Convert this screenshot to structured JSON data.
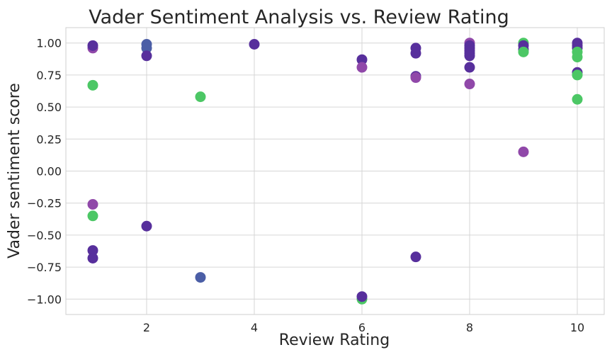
{
  "chart_data": {
    "type": "scatter",
    "title": "Vader Sentiment Analysis vs. Review Rating",
    "xlabel": "Review Rating",
    "ylabel": "Vader sentiment score",
    "xlim": [
      0.5,
      10.5
    ],
    "ylim": [
      -1.12,
      1.12
    ],
    "xticks": [
      2,
      4,
      6,
      8,
      10
    ],
    "xtick_labels": [
      "2",
      "4",
      "6",
      "8",
      "10"
    ],
    "yticks": [
      1.0,
      0.75,
      0.5,
      0.25,
      0.0,
      -0.25,
      -0.5,
      -0.75,
      -1.0
    ],
    "ytick_labels": [
      "1.00",
      "0.75",
      "0.50",
      "0.25",
      "0.00",
      "−0.25",
      "−0.50",
      "−0.75",
      "−1.00"
    ],
    "grid": true,
    "legend": "none",
    "colors": {
      "green": "#4cc765",
      "blue": "#4b5ea6",
      "purple": "#572f9c",
      "magenta": "#9048a9"
    },
    "points": [
      {
        "x": 1,
        "y": 0.96,
        "color": "magenta"
      },
      {
        "x": 1,
        "y": 0.98,
        "color": "purple"
      },
      {
        "x": 1,
        "y": 0.67,
        "color": "green"
      },
      {
        "x": 1,
        "y": -0.26,
        "color": "magenta"
      },
      {
        "x": 1,
        "y": -0.35,
        "color": "green"
      },
      {
        "x": 1,
        "y": -0.62,
        "color": "purple"
      },
      {
        "x": 1,
        "y": -0.68,
        "color": "purple"
      },
      {
        "x": 2,
        "y": 0.99,
        "color": "blue"
      },
      {
        "x": 2,
        "y": 0.96,
        "color": "blue"
      },
      {
        "x": 2,
        "y": 0.9,
        "color": "purple"
      },
      {
        "x": 2,
        "y": -0.43,
        "color": "purple"
      },
      {
        "x": 3,
        "y": 0.58,
        "color": "green"
      },
      {
        "x": 3,
        "y": -0.83,
        "color": "blue"
      },
      {
        "x": 4,
        "y": 0.99,
        "color": "purple"
      },
      {
        "x": 6,
        "y": 0.87,
        "color": "purple"
      },
      {
        "x": 6,
        "y": 0.81,
        "color": "magenta"
      },
      {
        "x": 6,
        "y": -1.0,
        "color": "green"
      },
      {
        "x": 6,
        "y": -0.98,
        "color": "purple"
      },
      {
        "x": 7,
        "y": 0.96,
        "color": "purple"
      },
      {
        "x": 7,
        "y": 0.92,
        "color": "purple"
      },
      {
        "x": 7,
        "y": 0.74,
        "color": "purple"
      },
      {
        "x": 7,
        "y": 0.73,
        "color": "magenta"
      },
      {
        "x": 7,
        "y": -0.67,
        "color": "purple"
      },
      {
        "x": 8,
        "y": 1.0,
        "color": "magenta"
      },
      {
        "x": 8,
        "y": 0.98,
        "color": "purple"
      },
      {
        "x": 8,
        "y": 0.96,
        "color": "purple"
      },
      {
        "x": 8,
        "y": 0.94,
        "color": "purple"
      },
      {
        "x": 8,
        "y": 0.92,
        "color": "purple"
      },
      {
        "x": 8,
        "y": 0.9,
        "color": "purple"
      },
      {
        "x": 8,
        "y": 0.81,
        "color": "purple"
      },
      {
        "x": 8,
        "y": 0.68,
        "color": "magenta"
      },
      {
        "x": 9,
        "y": 1.0,
        "color": "green"
      },
      {
        "x": 9,
        "y": 0.98,
        "color": "purple"
      },
      {
        "x": 9,
        "y": 0.95,
        "color": "purple"
      },
      {
        "x": 9,
        "y": 0.93,
        "color": "green"
      },
      {
        "x": 9,
        "y": 0.15,
        "color": "magenta"
      },
      {
        "x": 10,
        "y": 1.0,
        "color": "purple"
      },
      {
        "x": 10,
        "y": 0.98,
        "color": "purple"
      },
      {
        "x": 10,
        "y": 0.96,
        "color": "purple"
      },
      {
        "x": 10,
        "y": 0.93,
        "color": "green"
      },
      {
        "x": 10,
        "y": 0.89,
        "color": "green"
      },
      {
        "x": 10,
        "y": 0.77,
        "color": "purple"
      },
      {
        "x": 10,
        "y": 0.75,
        "color": "green"
      },
      {
        "x": 10,
        "y": 0.56,
        "color": "green"
      }
    ]
  }
}
